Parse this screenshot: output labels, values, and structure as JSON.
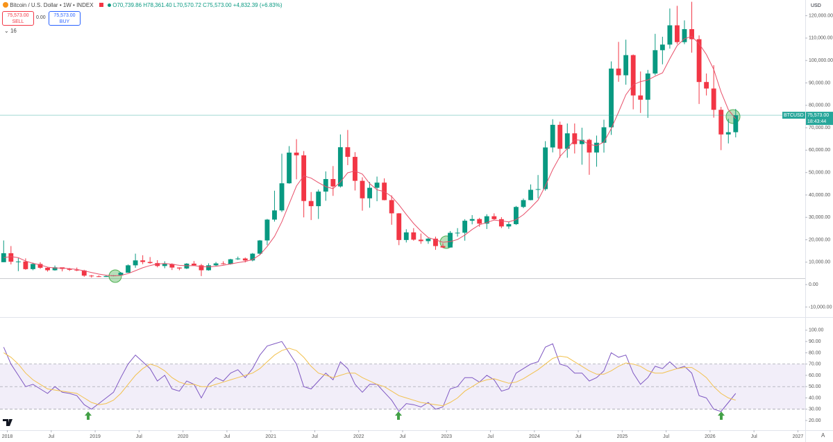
{
  "header": {
    "title": "Bitcoin / U.S. Dollar • 1W • INDEX",
    "open": "O70,739.86",
    "high": "H78,361.40",
    "low": "L70,570.72",
    "close": "C75,573.00",
    "change": "+4,832.39 (+6.83%)",
    "sell_price": "75,573.00",
    "sell": "SELL",
    "spread": "0.00",
    "buy_price": "75,573.00",
    "buy": "BUY",
    "indicator_count": "16",
    "currency": "USD",
    "auto": "A"
  },
  "chart_data": [
    {
      "type": "candlestick",
      "x": [
        "2017-12",
        "2018-01",
        "2018-02",
        "2018-03",
        "2018-04",
        "2018-05",
        "2018-06",
        "2018-07",
        "2018-08",
        "2018-09",
        "2018-10",
        "2018-11",
        "2018-12",
        "2019-01",
        "2019-02",
        "2019-03",
        "2019-04",
        "2019-05",
        "2019-06",
        "2019-07",
        "2019-08",
        "2019-09",
        "2019-10",
        "2019-11",
        "2019-12",
        "2020-01",
        "2020-02",
        "2020-03",
        "2020-04",
        "2020-05",
        "2020-06",
        "2020-07",
        "2020-08",
        "2020-09",
        "2020-10",
        "2020-11",
        "2020-12",
        "2021-01",
        "2021-02",
        "2021-03",
        "2021-04",
        "2021-05",
        "2021-06",
        "2021-07",
        "2021-08",
        "2021-09",
        "2021-10",
        "2021-11",
        "2021-12",
        "2022-01",
        "2022-02",
        "2022-03",
        "2022-04",
        "2022-05",
        "2022-06",
        "2022-07",
        "2022-08",
        "2022-09",
        "2022-10",
        "2022-11",
        "2022-12",
        "2023-01",
        "2023-02",
        "2023-03",
        "2023-04",
        "2023-05",
        "2023-06",
        "2023-07",
        "2023-08",
        "2023-09",
        "2023-10",
        "2023-11",
        "2023-12",
        "2024-01",
        "2024-02",
        "2024-03",
        "2024-04",
        "2024-05",
        "2024-06",
        "2024-07",
        "2024-08",
        "2024-09",
        "2024-10",
        "2024-11",
        "2024-12",
        "2025-01",
        "2025-02",
        "2025-03",
        "2025-04",
        "2025-05",
        "2025-06",
        "2025-07",
        "2025-08",
        "2025-09",
        "2025-10",
        "2025-11",
        "2025-12",
        "2026-01",
        "2026-02",
        "2026-03",
        "2026-04"
      ],
      "open": [
        10000,
        14000,
        10200,
        10300,
        6900,
        9200,
        7500,
        6400,
        7700,
        7000,
        6600,
        6300,
        4000,
        3700,
        3400,
        3800,
        4100,
        5300,
        8600,
        10800,
        10100,
        9600,
        8300,
        9200,
        7600,
        7200,
        9350,
        8600,
        6400,
        8600,
        9450,
        9140,
        11300,
        11650,
        10780,
        13800,
        19700,
        29000,
        33100,
        45200,
        58900,
        57700,
        37300,
        35000,
        41500,
        47100,
        43800,
        61300,
        57000,
        46300,
        38500,
        43200,
        45500,
        37700,
        31800,
        19900,
        23300,
        20050,
        19400,
        20500,
        17200,
        16550,
        23100,
        23150,
        28500,
        29250,
        27200,
        30500,
        29200,
        25950,
        26970,
        34650,
        37700,
        42300,
        42600,
        61200,
        71300,
        60600,
        67500,
        62700,
        64600,
        58950,
        63300,
        70200,
        96400,
        93400,
        102400,
        84400,
        82500,
        94200,
        104600,
        107100,
        115700,
        108200,
        114000,
        109500,
        90400,
        87500,
        78000,
        67000,
        68000
      ],
      "high": [
        19700,
        17200,
        11800,
        11700,
        9800,
        10000,
        7800,
        8500,
        7200,
        7400,
        7600,
        6600,
        4300,
        4100,
        4200,
        4200,
        5600,
        9000,
        13800,
        13100,
        12300,
        10900,
        10400,
        9500,
        7700,
        9600,
        10500,
        9200,
        9500,
        10100,
        10400,
        11500,
        12500,
        12100,
        14100,
        19900,
        29300,
        41900,
        58400,
        61800,
        64900,
        59600,
        41300,
        42400,
        50500,
        52900,
        67000,
        69000,
        59100,
        47900,
        45800,
        48200,
        47400,
        39800,
        31900,
        24700,
        25200,
        22800,
        20900,
        21400,
        18400,
        23900,
        25200,
        29200,
        31000,
        29800,
        31400,
        31800,
        30100,
        28000,
        35100,
        38400,
        44700,
        48900,
        64000,
        73800,
        72700,
        71900,
        71900,
        70000,
        65100,
        66500,
        73600,
        99600,
        108300,
        109300,
        102700,
        95100,
        95800,
        111900,
        110600,
        123200,
        124400,
        117900,
        126200,
        111200,
        94200,
        97900,
        79300,
        74000,
        78400
      ],
      "low": [
        10000,
        9000,
        6000,
        6600,
        6400,
        7000,
        5800,
        6200,
        5900,
        6100,
        6000,
        3500,
        3100,
        3400,
        3400,
        3700,
        4100,
        5300,
        7500,
        9100,
        9300,
        7700,
        7300,
        6500,
        6400,
        6900,
        8500,
        3800,
        6200,
        8100,
        8900,
        8900,
        11000,
        9900,
        10400,
        13200,
        17600,
        28100,
        32400,
        45000,
        47000,
        30000,
        28800,
        29300,
        37400,
        39600,
        43300,
        53300,
        42000,
        33000,
        34300,
        37200,
        37600,
        26700,
        17600,
        18800,
        19600,
        18200,
        18200,
        15500,
        16300,
        16500,
        21400,
        19600,
        26900,
        25800,
        24800,
        28900,
        25200,
        24900,
        26600,
        34100,
        37600,
        38500,
        41900,
        59000,
        56600,
        56600,
        58500,
        53500,
        49000,
        52600,
        58900,
        66800,
        90500,
        89200,
        78200,
        76600,
        74400,
        93400,
        98300,
        105300,
        107300,
        107300,
        103500,
        80600,
        84400,
        74500,
        60000,
        63000,
        65700
      ],
      "close": [
        14000,
        10200,
        10300,
        6900,
        9200,
        7500,
        6400,
        7700,
        7000,
        6600,
        6300,
        4000,
        3700,
        3400,
        3800,
        4100,
        5300,
        8600,
        10800,
        10100,
        9600,
        8300,
        9200,
        7600,
        7200,
        9350,
        8600,
        6400,
        8600,
        9450,
        9140,
        11300,
        11650,
        10780,
        13800,
        19700,
        29000,
        33100,
        45200,
        58900,
        57700,
        37300,
        35000,
        41500,
        47100,
        43800,
        61300,
        57000,
        46300,
        38500,
        43200,
        45500,
        37700,
        31800,
        19900,
        23300,
        20050,
        19400,
        20500,
        17200,
        16550,
        23100,
        23150,
        28500,
        29250,
        27200,
        30500,
        29200,
        25950,
        26970,
        34650,
        37700,
        42300,
        42600,
        61200,
        71300,
        60600,
        67500,
        62700,
        64600,
        58950,
        63300,
        70200,
        96400,
        93400,
        102400,
        84400,
        82500,
        94200,
        104600,
        107100,
        115700,
        108200,
        114000,
        109500,
        90400,
        87500,
        78000,
        67000,
        68000,
        75573
      ],
      "up_color": "#089981",
      "down_color": "#f23645",
      "overlay": {
        "color": "#e8506a",
        "values": [
          12000,
          12500,
          12000,
          10500,
          9500,
          8800,
          7800,
          7400,
          7400,
          7100,
          6800,
          6100,
          5400,
          4700,
          4200,
          3900,
          4100,
          4900,
          6200,
          7500,
          8500,
          9200,
          9400,
          9100,
          8600,
          8400,
          8500,
          8000,
          7900,
          8200,
          8600,
          9200,
          9800,
          10300,
          11200,
          13300,
          17000,
          21500,
          28000,
          36000,
          44000,
          48500,
          47500,
          45500,
          43700,
          42800,
          45800,
          49900,
          50700,
          49300,
          45100,
          42300,
          41500,
          39300,
          35600,
          31300,
          27300,
          23900,
          21000,
          20000,
          18900,
          19200,
          20100,
          22100,
          24600,
          26700,
          27700,
          28800,
          28400,
          28000,
          29000,
          31200,
          34300,
          37700,
          44000,
          51300,
          57200,
          60700,
          64600,
          64400,
          62500,
          62000,
          63600,
          69600,
          77000,
          84700,
          89200,
          90600,
          91300,
          93000,
          94500,
          100800,
          106700,
          109700,
          110800,
          107500,
          102700,
          96000,
          86000,
          78000,
          74000
        ]
      },
      "xlim": [
        "2017-12",
        "2027-02"
      ],
      "xticks": [
        {
          "value": "2018-01",
          "label": "2018"
        },
        {
          "value": "2018-07",
          "label": "Jul"
        },
        {
          "value": "2019-01",
          "label": "2019"
        },
        {
          "value": "2019-07",
          "label": "Jul"
        },
        {
          "value": "2020-01",
          "label": "2020"
        },
        {
          "value": "2020-07",
          "label": "Jul"
        },
        {
          "value": "2021-01",
          "label": "2021"
        },
        {
          "value": "2021-07",
          "label": "Jul"
        },
        {
          "value": "2022-01",
          "label": "2022"
        },
        {
          "value": "2022-07",
          "label": "Jul"
        },
        {
          "value": "2023-01",
          "label": "2023"
        },
        {
          "value": "2023-07",
          "label": "Jul"
        },
        {
          "value": "2024-01",
          "label": "2024"
        },
        {
          "value": "2024-07",
          "label": "Jul"
        },
        {
          "value": "2025-01",
          "label": "2025"
        },
        {
          "value": "2025-07",
          "label": "Jul"
        },
        {
          "value": "2026-01",
          "label": "2026"
        },
        {
          "value": "2026-07",
          "label": "Jul"
        },
        {
          "value": "2027-01",
          "label": "2027"
        }
      ],
      "ylim": [
        -14200,
        127000
      ],
      "yticks": [
        {
          "value": -10000,
          "label": "-10,000.00"
        },
        {
          "value": 0,
          "label": "0.00"
        },
        {
          "value": 10000,
          "label": "10,000.00"
        },
        {
          "value": 20000,
          "label": "20,000.00"
        },
        {
          "value": 30000,
          "label": "30,000.00"
        },
        {
          "value": 40000,
          "label": "40,000.00"
        },
        {
          "value": 50000,
          "label": "50,000.00"
        },
        {
          "value": 60000,
          "label": "60,000.00"
        },
        {
          "value": 70000,
          "label": "70,000.00"
        },
        {
          "value": 80000,
          "label": "80,000.00"
        },
        {
          "value": 90000,
          "label": "90,000.00"
        },
        {
          "value": 100000,
          "label": "100,000.00"
        },
        {
          "value": 110000,
          "label": "110,000.00"
        },
        {
          "value": 120000,
          "label": "120,000.00"
        }
      ],
      "last_price": 75573,
      "last_price_label": "75,573.00",
      "symbol": "BTCUSD",
      "countdown": "18:43:44",
      "last_price_color": "#26a69a"
    },
    {
      "type": "line",
      "x": [
        "2017-12",
        "2018-01",
        "2018-02",
        "2018-03",
        "2018-04",
        "2018-05",
        "2018-06",
        "2018-07",
        "2018-08",
        "2018-09",
        "2018-10",
        "2018-11",
        "2018-12",
        "2019-01",
        "2019-02",
        "2019-03",
        "2019-04",
        "2019-05",
        "2019-06",
        "2019-07",
        "2019-08",
        "2019-09",
        "2019-10",
        "2019-11",
        "2019-12",
        "2020-01",
        "2020-02",
        "2020-03",
        "2020-04",
        "2020-05",
        "2020-06",
        "2020-07",
        "2020-08",
        "2020-09",
        "2020-10",
        "2020-11",
        "2020-12",
        "2021-01",
        "2021-02",
        "2021-03",
        "2021-04",
        "2021-05",
        "2021-06",
        "2021-07",
        "2021-08",
        "2021-09",
        "2021-10",
        "2021-11",
        "2021-12",
        "2022-01",
        "2022-02",
        "2022-03",
        "2022-04",
        "2022-05",
        "2022-06",
        "2022-07",
        "2022-08",
        "2022-09",
        "2022-10",
        "2022-11",
        "2022-12",
        "2023-01",
        "2023-02",
        "2023-03",
        "2023-04",
        "2023-05",
        "2023-06",
        "2023-07",
        "2023-08",
        "2023-09",
        "2023-10",
        "2023-11",
        "2023-12",
        "2024-01",
        "2024-02",
        "2024-03",
        "2024-04",
        "2024-05",
        "2024-06",
        "2024-07",
        "2024-08",
        "2024-09",
        "2024-10",
        "2024-11",
        "2024-12",
        "2025-01",
        "2025-02",
        "2025-03",
        "2025-04",
        "2025-05",
        "2025-06",
        "2025-07",
        "2025-08",
        "2025-09",
        "2025-10",
        "2025-11",
        "2025-12",
        "2026-01",
        "2026-02",
        "2026-03",
        "2026-04"
      ],
      "series": [
        {
          "color": "#7e57c2",
          "values": [
            85,
            70,
            60,
            50,
            52,
            48,
            44,
            50,
            45,
            44,
            42,
            34,
            30,
            35,
            40,
            45,
            58,
            70,
            78,
            72,
            66,
            55,
            60,
            48,
            46,
            55,
            52,
            40,
            52,
            58,
            55,
            62,
            65,
            58,
            66,
            78,
            86,
            88,
            90,
            80,
            70,
            50,
            48,
            55,
            62,
            56,
            72,
            66,
            52,
            45,
            52,
            52,
            45,
            38,
            28,
            35,
            34,
            32,
            36,
            30,
            32,
            48,
            50,
            58,
            58,
            54,
            60,
            56,
            46,
            48,
            62,
            66,
            70,
            72,
            85,
            88,
            70,
            68,
            62,
            62,
            55,
            58,
            64,
            80,
            76,
            78,
            62,
            52,
            58,
            68,
            66,
            72,
            66,
            68,
            62,
            42,
            40,
            30,
            28,
            36,
            44
          ]
        },
        {
          "color": "#f2c14e",
          "values": [
            80,
            76,
            70,
            62,
            56,
            52,
            48,
            47,
            46,
            45,
            44,
            40,
            36,
            34,
            35,
            38,
            44,
            52,
            60,
            66,
            70,
            68,
            64,
            58,
            54,
            52,
            52,
            50,
            50,
            52,
            54,
            56,
            58,
            60,
            62,
            66,
            72,
            78,
            82,
            84,
            82,
            76,
            68,
            62,
            60,
            58,
            60,
            62,
            62,
            58,
            55,
            52,
            50,
            46,
            42,
            40,
            38,
            36,
            35,
            34,
            33,
            36,
            40,
            46,
            50,
            54,
            56,
            57,
            55,
            53,
            54,
            57,
            61,
            65,
            70,
            75,
            77,
            76,
            72,
            68,
            64,
            61,
            61,
            64,
            68,
            71,
            70,
            68,
            64,
            62,
            62,
            64,
            66,
            67,
            67,
            63,
            58,
            50,
            44,
            40,
            38
          ]
        }
      ],
      "band": [
        30,
        70
      ],
      "band_color": "#7e57c2",
      "levels": [
        30,
        50,
        70
      ],
      "xlim": [
        "2017-12",
        "2027-02"
      ],
      "ylim": [
        12,
        111
      ],
      "yticks": [
        {
          "value": 20,
          "label": "20.00"
        },
        {
          "value": 30,
          "label": "30.00"
        },
        {
          "value": 40,
          "label": "40.00"
        },
        {
          "value": 50,
          "label": "50.00"
        },
        {
          "value": 60,
          "label": "60.00"
        },
        {
          "value": 70,
          "label": "70.00"
        },
        {
          "value": 80,
          "label": "80.00"
        },
        {
          "value": 90,
          "label": "90.00"
        },
        {
          "value": 100,
          "label": "100.00"
        }
      ]
    }
  ]
}
